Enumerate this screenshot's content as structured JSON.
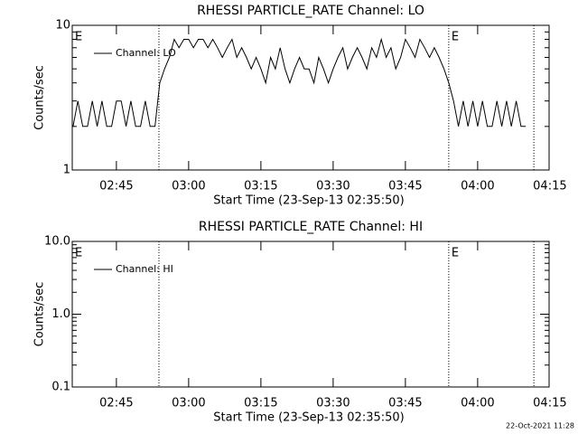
{
  "chart_data": [
    {
      "type": "line",
      "title": "RHESSI PARTICLE_RATE Channel: LO",
      "xlabel": "Start Time (23-Sep-13 02:35:50)",
      "ylabel": "Counts/sec",
      "log_y": true,
      "color": "#000000",
      "xlim": [
        155.833,
        254.833
      ],
      "xticks": [
        {
          "value": 165,
          "label": "02:45"
        },
        {
          "value": 180,
          "label": "03:00"
        },
        {
          "value": 195,
          "label": "03:15"
        },
        {
          "value": 210,
          "label": "03:30"
        },
        {
          "value": 225,
          "label": "03:45"
        },
        {
          "value": 240,
          "label": "04:00"
        },
        {
          "value": 255,
          "label": "04:15"
        }
      ],
      "ylim": [
        1,
        10
      ],
      "yticks": [
        1,
        10
      ],
      "yminor": [
        2,
        3,
        4,
        5,
        6,
        7,
        8,
        9
      ],
      "vlines": [
        173.83,
        234.0,
        251.67
      ],
      "annotations": [
        {
          "text": "E",
          "x": 155.833
        },
        {
          "text": "E",
          "x": 234.0
        }
      ],
      "x": [
        156,
        157,
        158,
        159,
        160,
        161,
        162,
        163,
        164,
        165,
        166,
        167,
        168,
        169,
        170,
        171,
        172,
        173,
        174,
        175,
        176,
        177,
        178,
        179,
        180,
        181,
        182,
        183,
        184,
        185,
        186,
        187,
        188,
        189,
        190,
        191,
        192,
        193,
        194,
        195,
        196,
        197,
        198,
        199,
        200,
        201,
        202,
        203,
        204,
        205,
        206,
        207,
        208,
        209,
        210,
        211,
        212,
        213,
        214,
        215,
        216,
        217,
        218,
        219,
        220,
        221,
        222,
        223,
        224,
        225,
        226,
        227,
        228,
        229,
        230,
        231,
        232,
        233,
        234,
        235,
        236,
        237,
        238,
        239,
        240,
        241,
        242,
        243,
        244,
        245,
        246,
        247,
        248,
        249,
        250
      ],
      "series": [
        {
          "name": "Channel: LO",
          "values": [
            2,
            3,
            2,
            2,
            3,
            2,
            3,
            2,
            2,
            3,
            3,
            2,
            3,
            2,
            2,
            3,
            2,
            2,
            4,
            5,
            6,
            8,
            7,
            8,
            8,
            7,
            8,
            8,
            7,
            8,
            7,
            6,
            7,
            8,
            6,
            7,
            6,
            5,
            6,
            5,
            4,
            6,
            5,
            7,
            5,
            4,
            5,
            6,
            5,
            5,
            4,
            6,
            5,
            4,
            5,
            6,
            7,
            5,
            6,
            7,
            6,
            5,
            7,
            6,
            8,
            6,
            7,
            5,
            6,
            8,
            7,
            6,
            8,
            7,
            6,
            7,
            6,
            5,
            4,
            3,
            2,
            3,
            2,
            3,
            2,
            3,
            2,
            2,
            3,
            2,
            3,
            2,
            3,
            2,
            2
          ]
        }
      ]
    },
    {
      "type": "line",
      "title": "RHESSI PARTICLE_RATE Channel: HI",
      "xlabel": "Start Time (23-Sep-13 02:35:50)",
      "ylabel": "Counts/sec",
      "log_y": true,
      "color": "#000000",
      "xlim": [
        155.833,
        254.833
      ],
      "xticks": [
        {
          "value": 165,
          "label": "02:45"
        },
        {
          "value": 180,
          "label": "03:00"
        },
        {
          "value": 195,
          "label": "03:15"
        },
        {
          "value": 210,
          "label": "03:30"
        },
        {
          "value": 225,
          "label": "03:45"
        },
        {
          "value": 240,
          "label": "04:00"
        },
        {
          "value": 255,
          "label": "04:15"
        }
      ],
      "ylim": [
        0.1,
        10
      ],
      "yticks": [
        0.1,
        {
          "value": 1,
          "label": "1.0"
        },
        {
          "value": 10,
          "label": "10.0"
        }
      ],
      "yminor": [
        0.2,
        0.3,
        0.4,
        0.5,
        0.6,
        0.7,
        0.8,
        0.9,
        2,
        3,
        4,
        5,
        6,
        7,
        8,
        9
      ],
      "vlines": [
        173.83,
        234.0,
        251.67
      ],
      "annotations": [
        {
          "text": "E",
          "x": 155.833
        },
        {
          "text": "E",
          "x": 234.0
        }
      ],
      "x": [],
      "series": [
        {
          "name": "Channel: HI",
          "values": []
        }
      ]
    }
  ],
  "footer": "22-Oct-2021 11:28"
}
